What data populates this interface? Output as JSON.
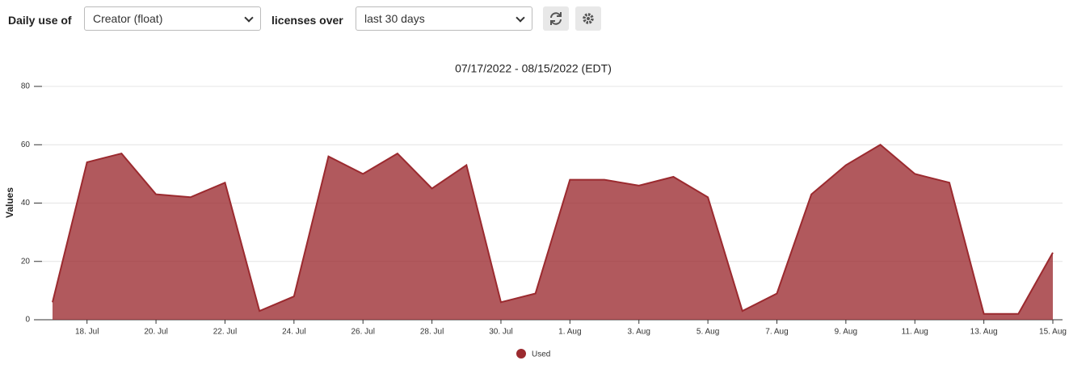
{
  "toolbar": {
    "label_1": "Daily use of",
    "select_1": "Creator (float)",
    "label_2": "licenses over",
    "select_2": "last 30 days"
  },
  "chart_data": {
    "type": "area",
    "title": "07/17/2022 - 08/15/2022 (EDT)",
    "y_label": "Values",
    "categories": [
      null,
      "18. Jul",
      null,
      "20. Jul",
      null,
      "22. Jul",
      null,
      "24. Jul",
      null,
      "26. Jul",
      null,
      "28. Jul",
      null,
      "30. Jul",
      null,
      "1. Aug",
      null,
      "3. Aug",
      null,
      "5. Aug",
      null,
      "7. Aug",
      null,
      "9. Aug",
      null,
      "11. Aug",
      null,
      "13. Aug",
      null,
      "15. Aug"
    ],
    "series": [
      {
        "name": "Used",
        "color": "#9b2a2f",
        "values": [
          6,
          54,
          57,
          43,
          42,
          47,
          3,
          8,
          56,
          50,
          57,
          45,
          53,
          6,
          9,
          48,
          48,
          46,
          49,
          42,
          3,
          9,
          43,
          53,
          60,
          50,
          47,
          2,
          2,
          23
        ]
      }
    ],
    "ylim": [
      0,
      80
    ],
    "yticks": [
      0,
      20,
      40,
      60,
      80
    ],
    "grid": true
  }
}
